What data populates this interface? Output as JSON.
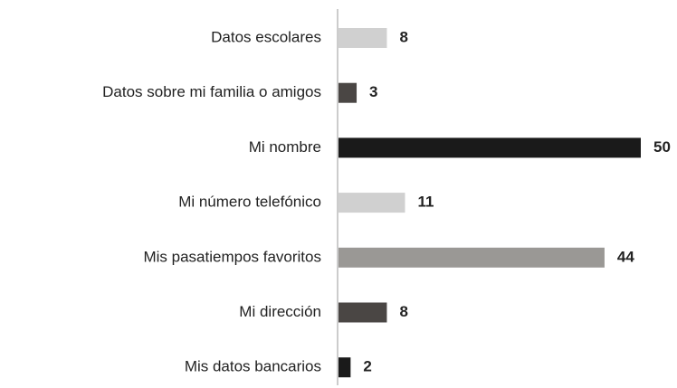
{
  "chart_data": {
    "type": "bar",
    "orientation": "horizontal",
    "categories": [
      "Datos escolares",
      "Datos sobre mi familia o amigos",
      "Mi nombre",
      "Mi número telefónico",
      "Mis pasatiempos favoritos",
      "Mi dirección",
      "Mis datos bancarios"
    ],
    "values": [
      8,
      3,
      50,
      11,
      44,
      8,
      2
    ],
    "colors": [
      "#d0d0d0",
      "#4a4644",
      "#1a1a1a",
      "#d0d0d0",
      "#9a9895",
      "#4a4644",
      "#1a1a1a"
    ]
  }
}
